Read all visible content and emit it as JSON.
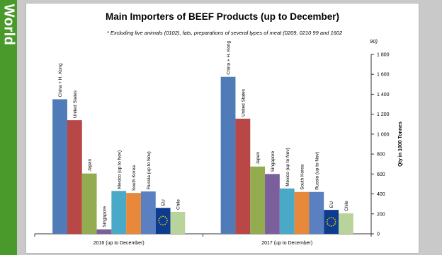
{
  "side_label": "World",
  "chart_data": {
    "type": "bar",
    "title": "Main Importers of BEEF Products (up to December)",
    "subtitle_lines": [
      "* Excluding live animals (0102), fats, preparations of several types of meat (0209, 0210 99 and 1602",
      "90)"
    ],
    "ylabel": "Qty in 1000 Tonnes",
    "ylim": [
      0,
      1800
    ],
    "yticks": [
      0,
      200,
      400,
      600,
      800,
      1000,
      1200,
      1400,
      1600,
      1800
    ],
    "ytick_labels": [
      "0",
      "200",
      "400",
      "600",
      "800",
      "1 000",
      "1 200",
      "1 400",
      "1 600",
      "1 800"
    ],
    "grid": false,
    "groups": [
      "2016 (up to December)",
      "2017 (up to December)"
    ],
    "series": [
      {
        "name": "China + H. Kong",
        "color": "#4f7cb8",
        "values": [
          1350,
          1575
        ]
      },
      {
        "name": "United States",
        "color": "#b84745",
        "values": [
          1140,
          1155
        ]
      },
      {
        "name": "Japan",
        "color": "#93ac4f",
        "values": [
          605,
          675
        ]
      },
      {
        "name": "Singapore",
        "color": "#7b5e9c",
        "values": [
          45,
          600
        ]
      },
      {
        "name": "Mexico (up to Nov)",
        "color": "#4aa9c6",
        "values": [
          430,
          455
        ]
      },
      {
        "name": "South Korea",
        "color": "#e8883a",
        "values": [
          410,
          420
        ]
      },
      {
        "name": "Russia (up to Nov)",
        "color": "#5a80c2",
        "values": [
          425,
          420
        ]
      },
      {
        "name": "EU",
        "color": "#0c3b8f",
        "values": [
          260,
          240
        ]
      },
      {
        "name": "Chile",
        "color": "#b9d49b",
        "values": [
          220,
          205
        ]
      }
    ],
    "colors": {
      "axis": "#333333",
      "text": "#000000",
      "eu_stars": "#f5d300"
    }
  }
}
